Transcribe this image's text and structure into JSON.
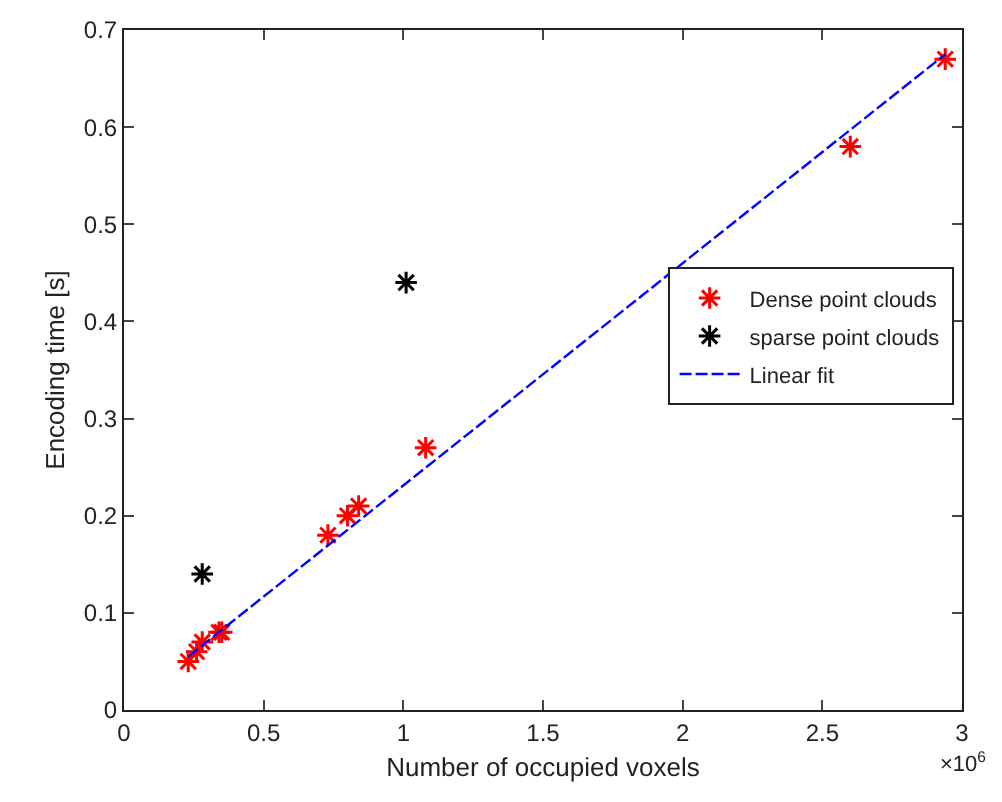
{
  "chart_data": {
    "type": "scatter",
    "xlabel": "Number of occupied voxels",
    "ylabel": "Encoding time [s]",
    "annotations": [
      "×10$^{6}$"
    ],
    "xlim": [
      0,
      3
    ],
    "xticks": [
      0,
      0.5,
      1,
      1.5,
      2,
      2.5,
      3
    ],
    "ylim": [
      0,
      0.7
    ],
    "yticks": [
      0,
      0.1,
      0.2,
      0.3,
      0.4,
      0.5,
      0.6,
      0.7
    ],
    "legend": "right",
    "line_style": "dashed",
    "series": [
      {
        "name": "Dense point clouds",
        "marker": "cross",
        "color": "#ff0000",
        "x": [
          0.23,
          0.26,
          0.28,
          0.34,
          0.35,
          0.73,
          0.8,
          0.84,
          1.08,
          2.6,
          2.94
        ],
        "values": [
          0.05,
          0.06,
          0.07,
          0.08,
          0.08,
          0.18,
          0.2,
          0.21,
          0.27,
          0.58,
          0.67
        ]
      },
      {
        "name": "sparse point clouds",
        "marker": "cross",
        "color": "#000000",
        "x": [
          0.28,
          1.01
        ],
        "values": [
          0.14,
          0.44
        ]
      },
      {
        "name": "Linear fit",
        "type": "line",
        "marker": "none",
        "color": "#0000ff",
        "x": [
          0.23,
          2.94
        ],
        "values": [
          0.055,
          0.675
        ]
      }
    ]
  }
}
